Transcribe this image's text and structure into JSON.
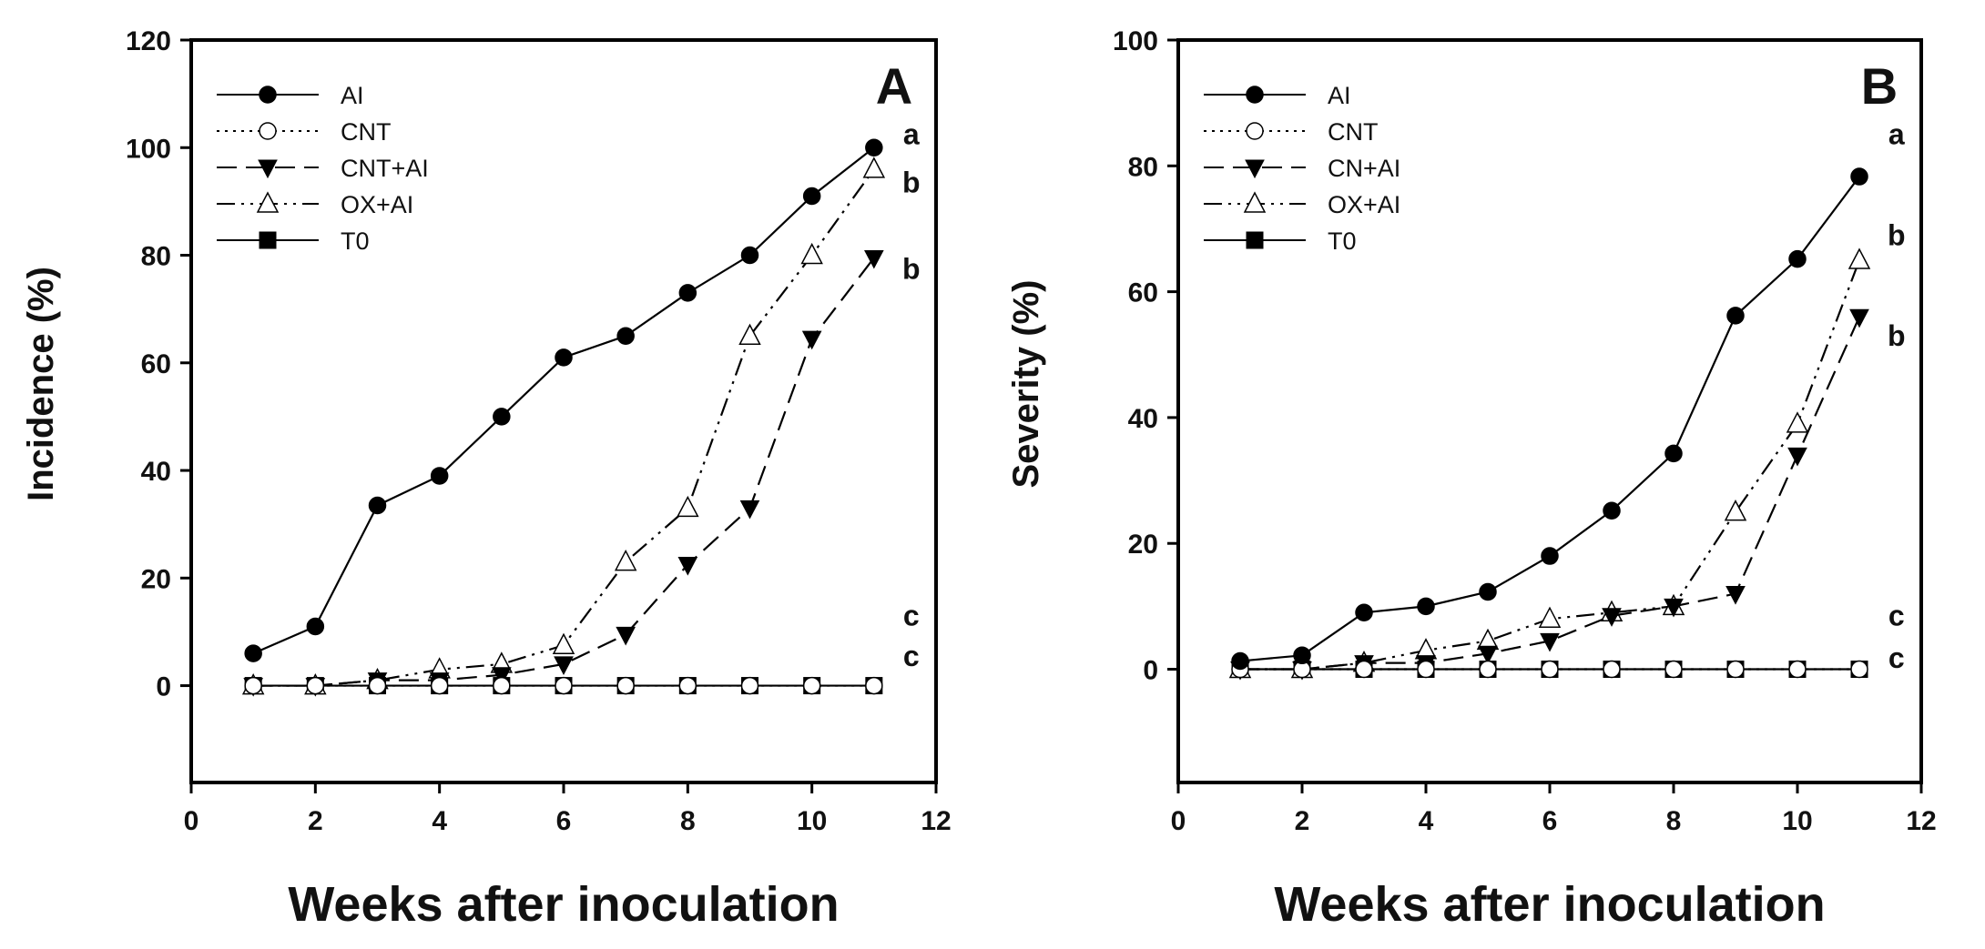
{
  "chart_data": [
    {
      "type": "line",
      "panel_label": "A",
      "xlabel": "Weeks after inoculation",
      "ylabel": "Incidence (%)",
      "xlim": [
        0,
        12
      ],
      "ylim": [
        -18,
        120
      ],
      "x_ticks": [
        0,
        2,
        4,
        6,
        8,
        10,
        12
      ],
      "y_ticks": [
        0,
        20,
        40,
        60,
        80,
        100,
        120
      ],
      "grid": false,
      "legend_position": "top-left",
      "x": [
        1,
        2,
        3,
        4,
        5,
        6,
        7,
        8,
        9,
        10,
        11
      ],
      "series": [
        {
          "name": " AI",
          "marker": "filled-circle",
          "line": "solid",
          "values": [
            6,
            11,
            33.5,
            39,
            50,
            61,
            65,
            73,
            80,
            91,
            100
          ]
        },
        {
          "name": "CNT",
          "marker": "open-circle",
          "line": "dotted",
          "values": [
            0,
            0,
            0,
            0,
            0,
            0,
            0,
            0,
            0,
            0,
            0
          ]
        },
        {
          "name": "CNT+AI",
          "marker": "filled-triangle-down",
          "line": "dashed",
          "values": [
            0,
            0,
            1,
            1,
            2,
            4,
            9.5,
            22.5,
            33,
            64.5,
            79.5
          ]
        },
        {
          "name": "OX+AI",
          "marker": "open-triangle-up",
          "line": "dash-dot-dot",
          "values": [
            0,
            0,
            1,
            3,
            4,
            7.5,
            23,
            33,
            65,
            80,
            96
          ]
        },
        {
          "name": "T0",
          "marker": "filled-square",
          "line": "solid",
          "values": [
            0,
            0,
            0,
            0,
            0,
            0,
            0,
            0,
            0,
            0,
            0
          ]
        }
      ],
      "annotations": [
        {
          "text": "a",
          "x": 11.6,
          "y": 102.5
        },
        {
          "text": "b",
          "x": 11.6,
          "y": 93.5
        },
        {
          "text": "b",
          "x": 11.6,
          "y": 77.5
        },
        {
          "text": "c",
          "x": 11.6,
          "y": 13
        },
        {
          "text": "c",
          "x": 11.6,
          "y": 5.5
        }
      ]
    },
    {
      "type": "line",
      "panel_label": "B",
      "xlabel": "Weeks after inoculation",
      "ylabel": "Severity (%)",
      "xlim": [
        0,
        12
      ],
      "ylim": [
        -18,
        100
      ],
      "x_ticks": [
        0,
        2,
        4,
        6,
        8,
        10,
        12
      ],
      "y_ticks": [
        0,
        20,
        40,
        60,
        80,
        100
      ],
      "grid": false,
      "legend_position": "top-left",
      "x": [
        1,
        2,
        3,
        4,
        5,
        6,
        7,
        8,
        9,
        10,
        11
      ],
      "series": [
        {
          "name": "AI",
          "marker": "filled-circle",
          "line": "solid",
          "values": [
            1.3,
            2.2,
            9,
            10,
            12.3,
            18,
            25.2,
            34.3,
            56.2,
            65.2,
            78.3
          ]
        },
        {
          "name": "CNT",
          "marker": "open-circle",
          "line": "dotted",
          "values": [
            0,
            0,
            0,
            0,
            0,
            0,
            0,
            0,
            0,
            0,
            0
          ]
        },
        {
          "name": "CN+AI",
          "marker": "filled-triangle-down",
          "line": "dashed",
          "values": [
            0,
            0,
            1,
            1,
            2.5,
            4.5,
            8.5,
            10,
            12,
            34,
            56
          ]
        },
        {
          "name": "OX+AI",
          "marker": "open-triangle-up",
          "line": "dash-dot-dot",
          "values": [
            0,
            0,
            1,
            3,
            4.5,
            8,
            9,
            10,
            25,
            39,
            65
          ]
        },
        {
          "name": "T0",
          "marker": "filled-square",
          "line": "solid",
          "values": [
            0,
            0,
            0,
            0,
            0,
            0,
            0,
            0,
            0,
            0,
            0
          ]
        }
      ],
      "annotations": [
        {
          "text": "a",
          "x": 11.6,
          "y": 85
        },
        {
          "text": "b",
          "x": 11.6,
          "y": 69
        },
        {
          "text": "b",
          "x": 11.6,
          "y": 53
        },
        {
          "text": "c",
          "x": 11.6,
          "y": 8.5
        },
        {
          "text": "c",
          "x": 11.6,
          "y": 1.8
        }
      ]
    }
  ]
}
